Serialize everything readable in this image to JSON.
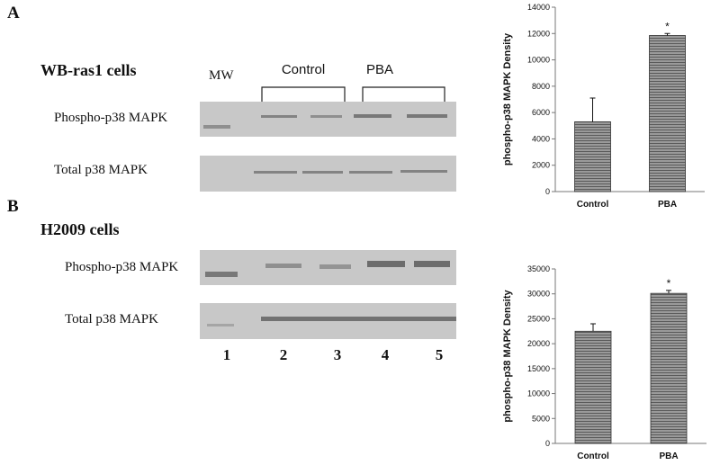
{
  "panels": [
    {
      "label": "A",
      "cell_line": "WB-ras1 cells",
      "rows": [
        "Phospho-p38 MAPK",
        "Total p38 MAPK"
      ],
      "mw": "MW",
      "groups": [
        "Control",
        "PBA"
      ]
    },
    {
      "label": "B",
      "cell_line": "H2009 cells",
      "rows": [
        "Phospho-p38 MAPK",
        "Total p38 MAPK"
      ],
      "lanes": [
        "1",
        "2",
        "3",
        "4",
        "5"
      ]
    }
  ],
  "chart_data": [
    {
      "type": "bar",
      "ylabel": "phospho-p38 MAPK Density",
      "categories": [
        "Control",
        "PBA"
      ],
      "values": [
        5300,
        11850
      ],
      "errors": [
        1800,
        150
      ],
      "significance": [
        null,
        "*"
      ],
      "color": "#8a8a8a",
      "ylim": [
        0,
        14000
      ],
      "yticks": [
        0,
        2000,
        4000,
        6000,
        8000,
        10000,
        12000,
        14000
      ]
    },
    {
      "type": "bar",
      "ylabel": "phospho-p38 MAPK Density",
      "categories": [
        "Control",
        "PBA"
      ],
      "values": [
        22500,
        30100
      ],
      "errors": [
        1500,
        600
      ],
      "significance": [
        null,
        "*"
      ],
      "color": "#8a8a8a",
      "ylim": [
        0,
        35000
      ],
      "yticks": [
        0,
        5000,
        10000,
        15000,
        20000,
        25000,
        30000,
        35000
      ]
    }
  ]
}
